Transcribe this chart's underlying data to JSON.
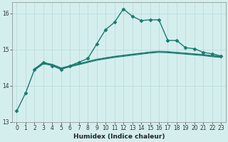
{
  "xlabel": "Humidex (Indice chaleur)",
  "background_color": "#d4eeee",
  "grid_color": "#b8d8d8",
  "line_color": "#1a7a6e",
  "xlim": [
    -0.5,
    23.5
  ],
  "ylim": [
    13.0,
    16.3
  ],
  "yticks": [
    13,
    14,
    15,
    16
  ],
  "xticks": [
    0,
    1,
    2,
    3,
    4,
    5,
    6,
    7,
    8,
    9,
    10,
    11,
    12,
    13,
    14,
    15,
    16,
    17,
    18,
    19,
    20,
    21,
    22,
    23
  ],
  "lines": [
    {
      "x": [
        0,
        1,
        2,
        3,
        4,
        5,
        6,
        7,
        8,
        9,
        10,
        11,
        12,
        13,
        14,
        15,
        16,
        17,
        18,
        19,
        20,
        21,
        22,
        23
      ],
      "y": [
        13.3,
        13.8,
        14.45,
        14.65,
        14.55,
        14.45,
        14.55,
        14.65,
        14.75,
        15.15,
        15.55,
        15.75,
        16.12,
        15.92,
        15.8,
        15.82,
        15.82,
        15.25,
        15.25,
        15.05,
        15.02,
        14.92,
        14.88,
        14.82
      ],
      "marker": "D",
      "marker_size": 2.5,
      "lw": 1.0
    },
    {
      "x": [
        2,
        3,
        4,
        5,
        6,
        7,
        8,
        9,
        10,
        11,
        12,
        13,
        14,
        15,
        16,
        17,
        18,
        19,
        20,
        21,
        22,
        23
      ],
      "y": [
        14.45,
        14.62,
        14.58,
        14.48,
        14.54,
        14.6,
        14.66,
        14.72,
        14.76,
        14.8,
        14.83,
        14.86,
        14.89,
        14.92,
        14.94,
        14.93,
        14.91,
        14.89,
        14.87,
        14.85,
        14.82,
        14.8
      ],
      "marker": null,
      "lw": 0.8
    },
    {
      "x": [
        2,
        3,
        4,
        5,
        6,
        7,
        8,
        9,
        10,
        11,
        12,
        13,
        14,
        15,
        16,
        17,
        18,
        19,
        20,
        21,
        22,
        23
      ],
      "y": [
        14.47,
        14.64,
        14.59,
        14.49,
        14.55,
        14.61,
        14.67,
        14.73,
        14.77,
        14.81,
        14.84,
        14.87,
        14.9,
        14.93,
        14.95,
        14.94,
        14.92,
        14.9,
        14.88,
        14.86,
        14.83,
        14.81
      ],
      "marker": null,
      "lw": 0.8
    },
    {
      "x": [
        2,
        3,
        4,
        5,
        6,
        7,
        8,
        9,
        10,
        11,
        12,
        13,
        14,
        15,
        16,
        17,
        18,
        19,
        20,
        21,
        22,
        23
      ],
      "y": [
        14.43,
        14.6,
        14.56,
        14.46,
        14.52,
        14.58,
        14.64,
        14.7,
        14.74,
        14.78,
        14.81,
        14.84,
        14.87,
        14.9,
        14.92,
        14.91,
        14.89,
        14.87,
        14.85,
        14.83,
        14.8,
        14.78
      ],
      "marker": null,
      "lw": 0.8
    }
  ]
}
